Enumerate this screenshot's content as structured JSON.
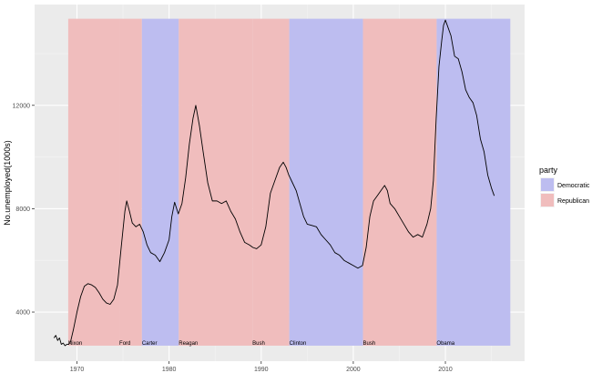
{
  "chart_data": {
    "type": "line",
    "xlabel": "",
    "ylabel": "No.unemployed(1000s)",
    "xlim": [
      1965.4,
      2018.6
    ],
    "ylim": [
      2100,
      15900
    ],
    "x_ticks": [
      1970,
      1980,
      1990,
      2000,
      2010
    ],
    "x_tick_labels": [
      "1970",
      "1980",
      "1990",
      "2000",
      "2010"
    ],
    "y_ticks": [
      4000,
      8000,
      12000
    ],
    "y_tick_labels": [
      "4000",
      "8000",
      "12000"
    ],
    "grid": true,
    "legend": {
      "title": "party",
      "placement": "right",
      "entries": [
        {
          "label": "Democratic",
          "color": "#8080f0"
        },
        {
          "label": "Republican",
          "color": "#f08080"
        }
      ]
    },
    "band_colors": {
      "Democratic": "#bdbdf0",
      "Republican": "#f0bdbd"
    },
    "band_y_range": [
      2700,
      15350
    ],
    "presidential": [
      {
        "name": "Nixon",
        "start": 1969.05,
        "end": 1974.6,
        "party": "Republican"
      },
      {
        "name": "Ford",
        "start": 1974.6,
        "end": 1977.05,
        "party": "Republican"
      },
      {
        "name": "Carter",
        "start": 1977.05,
        "end": 1981.05,
        "party": "Democratic"
      },
      {
        "name": "Reagan",
        "start": 1981.05,
        "end": 1989.05,
        "party": "Republican"
      },
      {
        "name": "Bush",
        "start": 1989.05,
        "end": 1993.05,
        "party": "Republican"
      },
      {
        "name": "Clinton",
        "start": 1993.05,
        "end": 2001.05,
        "party": "Democratic"
      },
      {
        "name": "Bush",
        "start": 2001.05,
        "end": 2009.05,
        "party": "Republican"
      },
      {
        "name": "Obama",
        "start": 2009.05,
        "end": 2017.05,
        "party": "Democratic"
      }
    ],
    "series": [
      {
        "color": "#000000",
        "x": [
          1967.5,
          1967.7,
          1967.9,
          1968.1,
          1968.3,
          1968.5,
          1968.7,
          1968.9,
          1969.1,
          1969.3,
          1969.6,
          1970.0,
          1970.4,
          1970.8,
          1971.2,
          1971.6,
          1972.0,
          1972.4,
          1972.8,
          1973.2,
          1973.6,
          1974.0,
          1974.4,
          1974.8,
          1975.2,
          1975.4,
          1975.7,
          1976.0,
          1976.4,
          1976.8,
          1977.2,
          1977.6,
          1978.0,
          1978.5,
          1979.0,
          1979.5,
          1980.0,
          1980.3,
          1980.6,
          1981.0,
          1981.4,
          1981.8,
          1982.2,
          1982.6,
          1982.9,
          1983.3,
          1983.7,
          1984.2,
          1984.7,
          1985.2,
          1985.7,
          1986.2,
          1986.7,
          1987.2,
          1987.7,
          1988.2,
          1988.7,
          1989.1,
          1989.5,
          1990.0,
          1990.5,
          1991.0,
          1991.5,
          1992.0,
          1992.4,
          1992.7,
          1993.0,
          1993.4,
          1993.8,
          1994.2,
          1994.6,
          1995.0,
          1995.5,
          1996.0,
          1996.5,
          1997.0,
          1997.5,
          1998.0,
          1998.5,
          1999.0,
          1999.5,
          2000.0,
          2000.5,
          2001.0,
          2001.4,
          2001.8,
          2002.2,
          2002.6,
          2003.0,
          2003.4,
          2003.7,
          2004.0,
          2004.5,
          2005.0,
          2005.5,
          2006.0,
          2006.5,
          2007.0,
          2007.5,
          2008.0,
          2008.4,
          2008.7,
          2009.0,
          2009.3,
          2009.6,
          2009.8,
          2010.0,
          2010.3,
          2010.6,
          2011.0,
          2011.4,
          2011.8,
          2012.2,
          2012.6,
          2013.0,
          2013.4,
          2013.8,
          2014.2,
          2014.6,
          2015.0,
          2015.3
        ],
        "y": [
          3000,
          3100,
          2900,
          3000,
          2750,
          2800,
          2700,
          2750,
          2750,
          2850,
          3300,
          4000,
          4600,
          5000,
          5100,
          5050,
          4950,
          4750,
          4500,
          4350,
          4300,
          4500,
          5050,
          6500,
          7900,
          8300,
          7900,
          7450,
          7300,
          7400,
          7100,
          6600,
          6300,
          6200,
          5950,
          6300,
          6800,
          7700,
          8250,
          7800,
          8200,
          9200,
          10500,
          11500,
          12000,
          11200,
          10200,
          9000,
          8300,
          8300,
          8200,
          8300,
          7900,
          7600,
          7100,
          6700,
          6600,
          6500,
          6450,
          6600,
          7300,
          8600,
          9100,
          9600,
          9800,
          9600,
          9300,
          9000,
          8700,
          8200,
          7700,
          7400,
          7350,
          7300,
          7000,
          6800,
          6600,
          6300,
          6200,
          6000,
          5900,
          5800,
          5700,
          5800,
          6500,
          7700,
          8300,
          8500,
          8700,
          8900,
          8700,
          8200,
          8000,
          7700,
          7400,
          7100,
          6900,
          7000,
          6900,
          7400,
          8000,
          9100,
          11500,
          13500,
          14500,
          15100,
          15300,
          15000,
          14700,
          13900,
          13800,
          13300,
          12600,
          12300,
          12100,
          11600,
          10700,
          10200,
          9300,
          8800,
          8500
        ]
      }
    ]
  }
}
